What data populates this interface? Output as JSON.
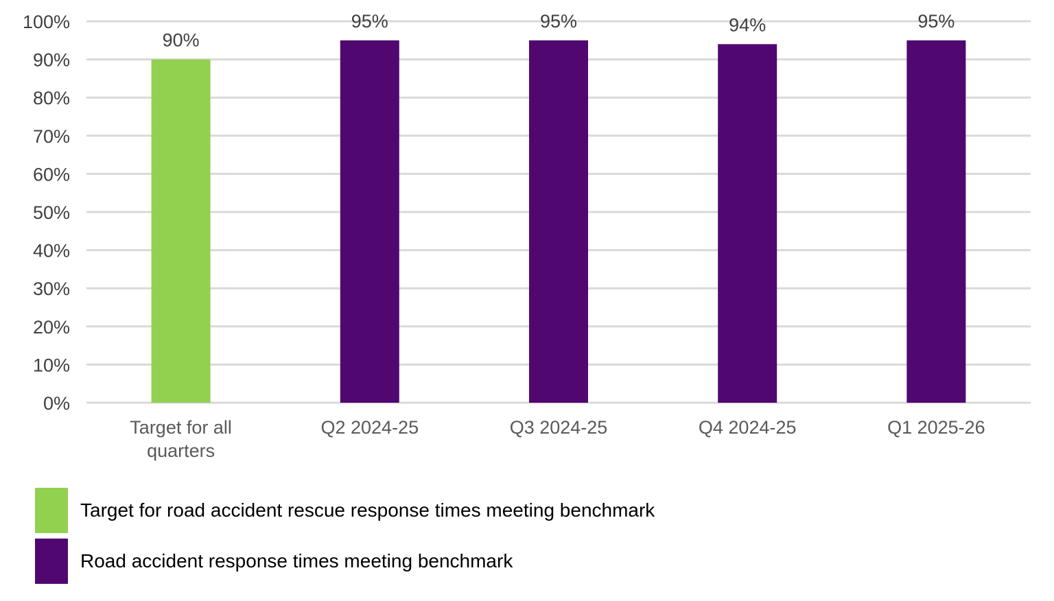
{
  "chart_data": {
    "type": "bar",
    "title": "",
    "xlabel": "",
    "ylabel": "",
    "ylim": [
      0,
      100
    ],
    "yticks": [
      "0%",
      "10%",
      "20%",
      "30%",
      "40%",
      "50%",
      "60%",
      "70%",
      "80%",
      "90%",
      "100%"
    ],
    "grid": true,
    "legend_placement": "bottom-left",
    "categories": [
      [
        "Target for all",
        "quarters"
      ],
      [
        "Q2 2024-25"
      ],
      [
        "Q3 2024-25"
      ],
      [
        "Q4 2024-25"
      ],
      [
        "Q1 2025-26"
      ]
    ],
    "values": [
      90,
      95,
      95,
      94,
      95
    ],
    "data_labels": [
      "90%",
      "95%",
      "95%",
      "94%",
      "95%"
    ],
    "bar_series": [
      0,
      1,
      1,
      1,
      1
    ],
    "series": [
      {
        "name": "Target for road accident rescue response times meeting benchmark",
        "color": "#92d050"
      },
      {
        "name": "Road accident response times meeting benchmark",
        "color": "#500870"
      }
    ]
  }
}
